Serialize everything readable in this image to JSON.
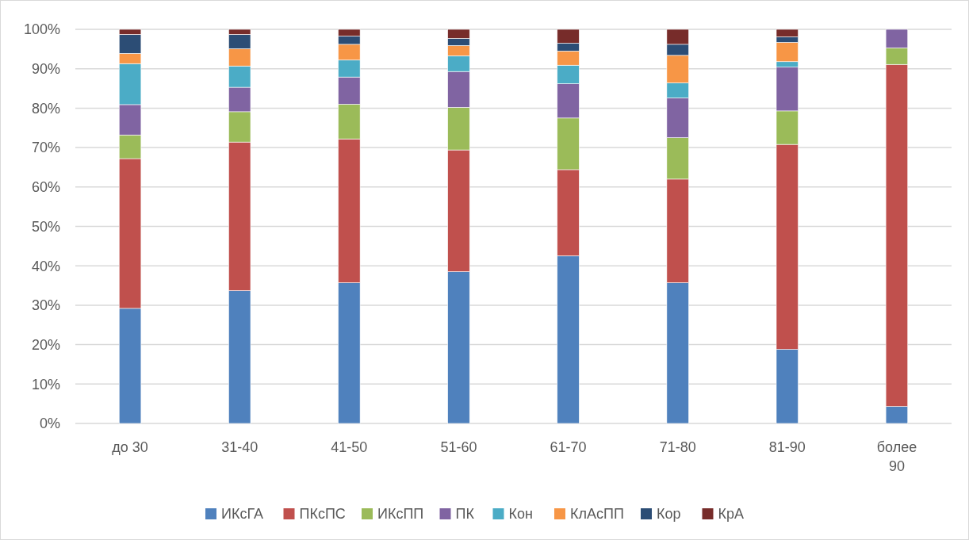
{
  "chart_data": {
    "type": "bar",
    "stacked": true,
    "categories": [
      "до 30",
      "31-40",
      "41-50",
      "51-60",
      "61-70",
      "71-80",
      "81-90",
      "более 90"
    ],
    "series": [
      {
        "name": "ИКсГА",
        "color": "#4f81bd",
        "values": [
          29.2,
          33.7,
          35.7,
          38.5,
          42.5,
          35.7,
          18.8,
          4.3
        ]
      },
      {
        "name": "ПКсПС",
        "color": "#c0504d",
        "values": [
          38.0,
          37.7,
          36.5,
          30.9,
          21.9,
          26.3,
          52.0,
          86.8
        ]
      },
      {
        "name": "ИКсПП",
        "color": "#9bbb59",
        "values": [
          6.0,
          7.7,
          8.8,
          10.8,
          13.1,
          10.5,
          8.5,
          4.2
        ]
      },
      {
        "name": "ПК",
        "color": "#8064a2",
        "values": [
          7.7,
          6.2,
          6.9,
          9.1,
          8.7,
          10.1,
          11.1,
          4.7
        ]
      },
      {
        "name": "Кон",
        "color": "#4bacc6",
        "values": [
          10.4,
          5.4,
          4.3,
          4.0,
          4.7,
          3.8,
          1.4,
          0
        ]
      },
      {
        "name": "КлАсПП",
        "color": "#f79646",
        "values": [
          2.6,
          4.4,
          4.0,
          2.6,
          3.6,
          7.0,
          4.9,
          0
        ]
      },
      {
        "name": "Кор",
        "color": "#2c4d75",
        "values": [
          4.8,
          3.6,
          2.1,
          1.8,
          2.0,
          2.8,
          1.4,
          0
        ]
      },
      {
        "name": "КрА",
        "color": "#772c2a",
        "values": [
          1.3,
          1.3,
          1.7,
          2.3,
          3.5,
          3.8,
          1.9,
          0
        ]
      }
    ],
    "ylim": [
      0,
      100
    ],
    "yticks": [
      {
        "value": 0,
        "label": "0%"
      },
      {
        "value": 10,
        "label": "10%"
      },
      {
        "value": 20,
        "label": "20%"
      },
      {
        "value": 30,
        "label": "30%"
      },
      {
        "value": 40,
        "label": "40%"
      },
      {
        "value": 50,
        "label": "50%"
      },
      {
        "value": 60,
        "label": "60%"
      },
      {
        "value": 70,
        "label": "70%"
      },
      {
        "value": 80,
        "label": "80%"
      },
      {
        "value": 90,
        "label": "90%"
      },
      {
        "value": 100,
        "label": "100%"
      }
    ],
    "grid": "y",
    "legend": "bottom"
  }
}
